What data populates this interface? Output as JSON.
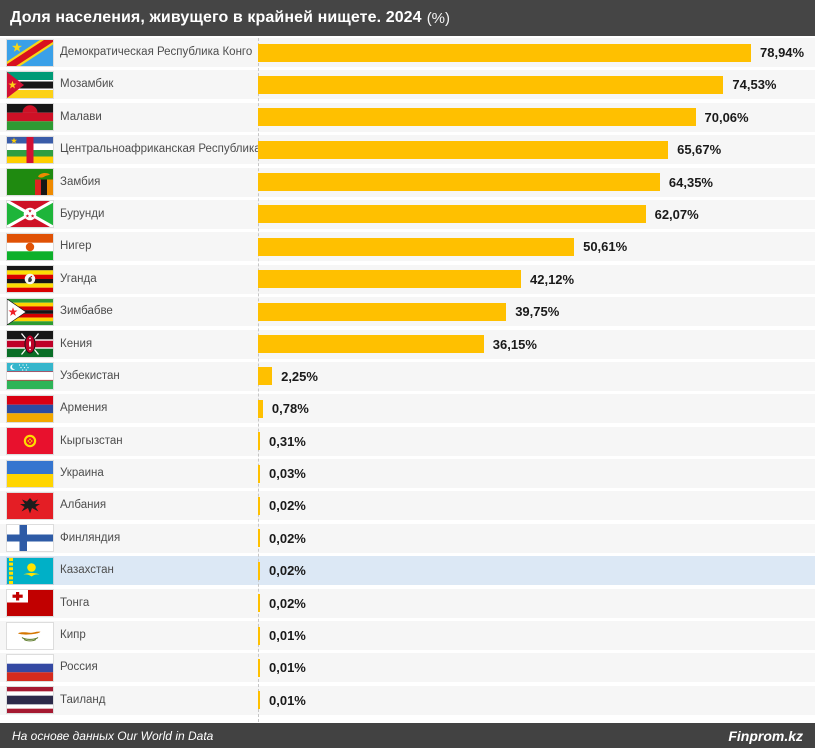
{
  "header": {
    "title": "Доля населения, живущего в крайней нищете. 2024",
    "title_suffix": "(%)"
  },
  "footer": {
    "source": "На основе данных Our World in Data",
    "brand": "Finprom.kz"
  },
  "colors": {
    "bar": "#FFC000",
    "header_bg": "#454545",
    "footer_bg": "#424242",
    "row_bg": "#f6f6f6",
    "row_highlight_bg": "#dce8f5",
    "baseline": "#c6c6c6"
  },
  "chart_data": {
    "type": "bar",
    "orientation": "horizontal",
    "title": "Доля населения, живущего в крайней нищете. 2024 (%)",
    "unit": "%",
    "xlim": [
      0,
      80
    ],
    "grid": false,
    "legend": "none",
    "highlighted_category": "Казахстан",
    "rows": [
      {
        "country": "Демократическая Республика Конго",
        "value": 78.94,
        "label": "78,94%",
        "flag": "cd"
      },
      {
        "country": "Мозамбик",
        "value": 74.53,
        "label": "74,53%",
        "flag": "mz"
      },
      {
        "country": "Малави",
        "value": 70.06,
        "label": "70,06%",
        "flag": "mw"
      },
      {
        "country": "Центральноафриканская Республика",
        "value": 65.67,
        "label": "65,67%",
        "flag": "cf"
      },
      {
        "country": "Замбия",
        "value": 64.35,
        "label": "64,35%",
        "flag": "zm"
      },
      {
        "country": "Бурунди",
        "value": 62.07,
        "label": "62,07%",
        "flag": "bi"
      },
      {
        "country": "Нигер",
        "value": 50.61,
        "label": "50,61%",
        "flag": "ne"
      },
      {
        "country": "Уганда",
        "value": 42.12,
        "label": "42,12%",
        "flag": "ug"
      },
      {
        "country": "Зимбабве",
        "value": 39.75,
        "label": "39,75%",
        "flag": "zw"
      },
      {
        "country": "Кения",
        "value": 36.15,
        "label": "36,15%",
        "flag": "ke"
      },
      {
        "country": "Узбекистан",
        "value": 2.25,
        "label": "2,25%",
        "flag": "uz"
      },
      {
        "country": "Армения",
        "value": 0.78,
        "label": "0,78%",
        "flag": "am"
      },
      {
        "country": "Кыргызстан",
        "value": 0.31,
        "label": "0,31%",
        "flag": "kg"
      },
      {
        "country": "Украина",
        "value": 0.03,
        "label": "0,03%",
        "flag": "ua"
      },
      {
        "country": "Албания",
        "value": 0.02,
        "label": "0,02%",
        "flag": "al"
      },
      {
        "country": "Финляндия",
        "value": 0.02,
        "label": "0,02%",
        "flag": "fi"
      },
      {
        "country": "Казахстан",
        "value": 0.02,
        "label": "0,02%",
        "flag": "kz",
        "highlighted": true
      },
      {
        "country": "Тонга",
        "value": 0.02,
        "label": "0,02%",
        "flag": "to"
      },
      {
        "country": "Кипр",
        "value": 0.01,
        "label": "0,01%",
        "flag": "cy"
      },
      {
        "country": "Россия",
        "value": 0.01,
        "label": "0,01%",
        "flag": "ru"
      },
      {
        "country": "Таиланд",
        "value": 0.01,
        "label": "0,01%",
        "flag": "th"
      }
    ]
  }
}
